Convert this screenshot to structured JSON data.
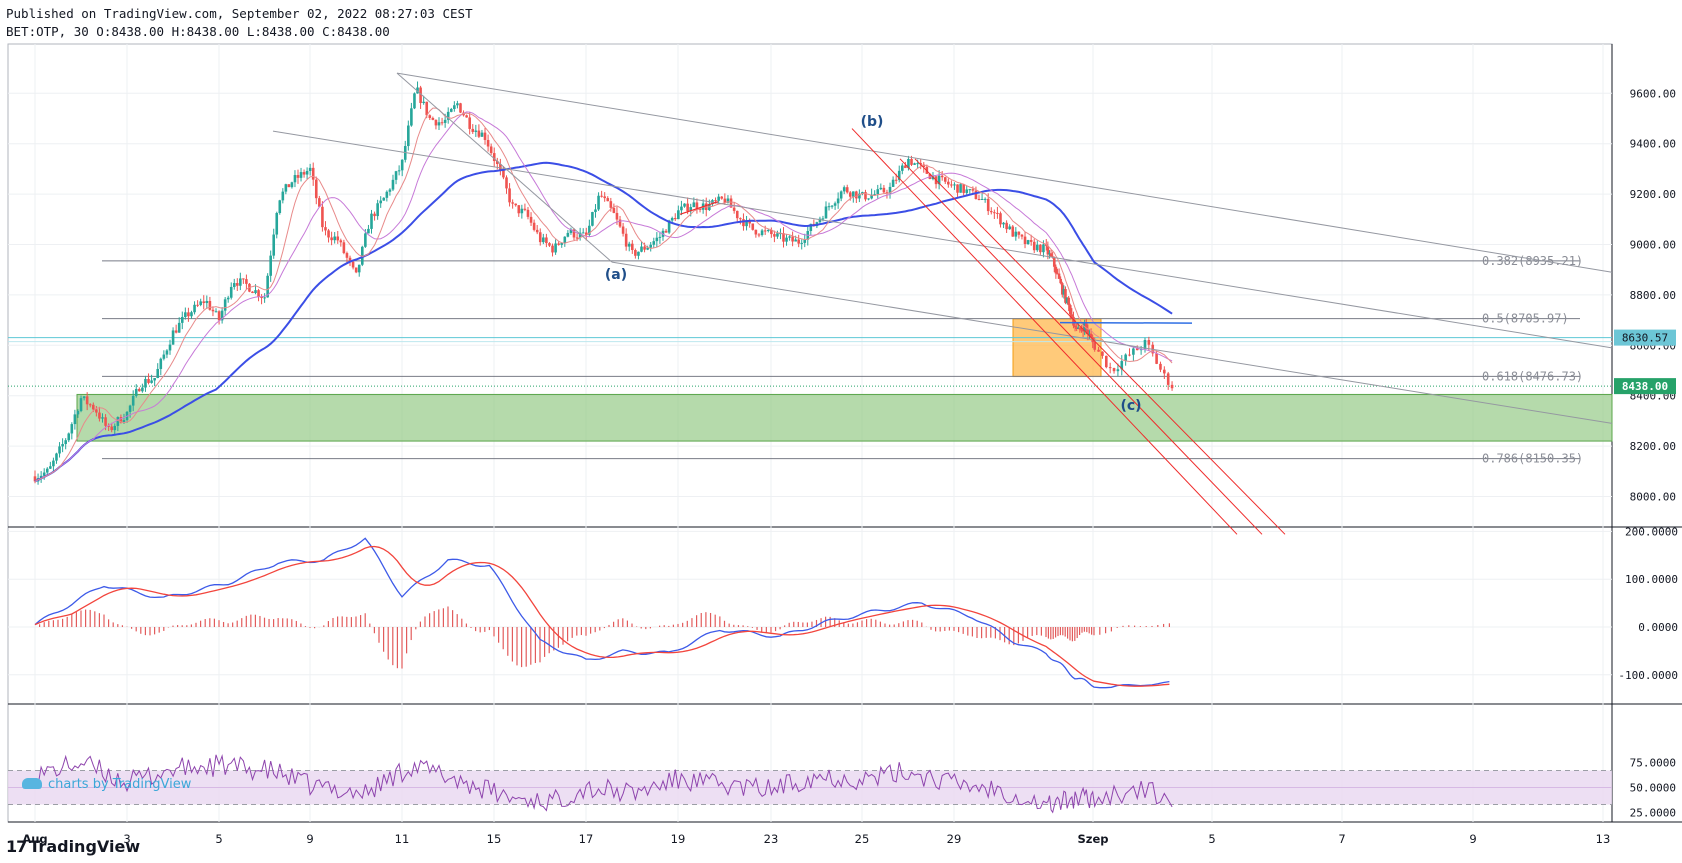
{
  "header": {
    "published": "Published on TradingView.com, September 02, 2022 08:27:03 CEST",
    "ohlc": "BET:OTP, 30 O:8438.00 H:8438.00 L:8438.00 C:8438.00"
  },
  "branding": {
    "footer": "TradingView",
    "watermark": "charts by TradingView"
  },
  "colors": {
    "up": "#26a69a",
    "down": "#ef5350",
    "ma_blue": "#3b4ee6",
    "ma_pink": "#e88a8a",
    "ma_violet": "#c77ad8",
    "fib": "#787b86",
    "channel": "#ef2b2b",
    "zone_green": "#8ec67e",
    "zone_orange": "#ffb84d",
    "last_price": "#26a269",
    "hline": "#5ec8d6"
  },
  "chart_data": [
    {
      "type": "candlestick",
      "symbol": "BET:OTP",
      "interval": "30",
      "x_tick_labels": [
        "Aug",
        "3",
        "5",
        "9",
        "11",
        "15",
        "17",
        "19",
        "23",
        "25",
        "29",
        "Szep",
        "5",
        "7",
        "9",
        "13"
      ],
      "y_ticks": [
        8000,
        8200,
        8400,
        8600,
        8800,
        9000,
        9200,
        9400,
        9600
      ],
      "y_tick_labels": [
        "8000.00",
        "8200.00",
        "8400.00",
        "8600.00",
        "8800.00",
        "9000.00",
        "9200.00",
        "9400.00",
        "9600.00"
      ],
      "ylim": [
        7950,
        9740
      ],
      "last_price": {
        "value": 8438,
        "label": "8438.00"
      },
      "price_line": {
        "value": 8630.57,
        "label": "8630.57"
      },
      "close_path_days": [
        [
          0,
          8080
        ],
        [
          0.3,
          8100
        ],
        [
          0.7,
          8240
        ],
        [
          1.0,
          8390
        ],
        [
          1.3,
          8350
        ],
        [
          1.6,
          8260
        ],
        [
          1.8,
          8300
        ],
        [
          2.0,
          8330
        ],
        [
          2.3,
          8450
        ],
        [
          2.6,
          8470
        ],
        [
          3.0,
          8650
        ],
        [
          3.3,
          8720
        ],
        [
          3.7,
          8780
        ],
        [
          4.0,
          8700
        ],
        [
          4.3,
          8860
        ],
        [
          4.6,
          8840
        ],
        [
          5.0,
          8790
        ],
        [
          5.3,
          9180
        ],
        [
          5.6,
          9250
        ],
        [
          6.0,
          9300
        ],
        [
          6.3,
          9050
        ],
        [
          6.6,
          9020
        ],
        [
          7.0,
          8870
        ],
        [
          7.3,
          9100
        ],
        [
          7.6,
          9180
        ],
        [
          8.0,
          9320
        ],
        [
          8.3,
          9620
        ],
        [
          8.6,
          9500
        ],
        [
          8.9,
          9480
        ],
        [
          9.2,
          9560
        ],
        [
          9.5,
          9470
        ],
        [
          9.8,
          9430
        ],
        [
          10.1,
          9300
        ],
        [
          10.4,
          9150
        ],
        [
          10.7,
          9120
        ],
        [
          11.0,
          9020
        ],
        [
          11.3,
          8980
        ],
        [
          11.6,
          9050
        ],
        [
          12.0,
          9030
        ],
        [
          12.3,
          9200
        ],
        [
          12.6,
          9120
        ],
        [
          13.0,
          8960
        ],
        [
          13.3,
          8990
        ],
        [
          13.6,
          9030
        ],
        [
          14.0,
          9130
        ],
        [
          14.3,
          9160
        ],
        [
          14.6,
          9150
        ],
        [
          15.0,
          9180
        ],
        [
          15.3,
          9110
        ],
        [
          15.6,
          9060
        ],
        [
          16.0,
          9040
        ],
        [
          16.3,
          9020
        ],
        [
          16.6,
          9010
        ],
        [
          17.0,
          9090
        ],
        [
          17.3,
          9160
        ],
        [
          17.6,
          9220
        ],
        [
          18.0,
          9190
        ],
        [
          18.3,
          9200
        ],
        [
          18.6,
          9220
        ],
        [
          19.0,
          9340
        ],
        [
          19.3,
          9300
        ],
        [
          19.6,
          9260
        ],
        [
          20.0,
          9230
        ],
        [
          20.3,
          9210
        ],
        [
          20.6,
          9180
        ],
        [
          21.0,
          9100
        ],
        [
          21.3,
          9040
        ],
        [
          21.6,
          9000
        ],
        [
          22.0,
          8980
        ],
        [
          22.3,
          8930
        ],
        [
          22.6,
          8840
        ],
        [
          23.0,
          8740
        ],
        [
          23.3,
          8650
        ],
        [
          23.6,
          8680
        ],
        [
          24.0,
          8600
        ],
        [
          24.3,
          8500
        ],
        [
          24.6,
          8560
        ],
        [
          24.9,
          8610
        ],
        [
          25.2,
          8480
        ],
        [
          25.35,
          8438
        ]
      ]
    },
    {
      "type": "line",
      "name": "MACD",
      "y_ticks": [
        200,
        100,
        0,
        -100
      ],
      "y_tick_labels": [
        "200.0000",
        "100.0000",
        "0.0000",
        "-100.0000"
      ],
      "ylim": [
        -160,
        210
      ]
    },
    {
      "type": "line",
      "name": "RSI",
      "y_ticks": [
        75,
        50,
        25
      ],
      "y_tick_labels": [
        "75.0000",
        "50.0000",
        "25.0000"
      ],
      "band": [
        33,
        67
      ],
      "ylim": [
        15,
        90
      ]
    }
  ],
  "fib_levels": [
    {
      "value": 8935.21,
      "label": "0.382(8935.21)"
    },
    {
      "value": 8705.97,
      "label": "0.5(8705.97)"
    },
    {
      "value": 8476.73,
      "label": "0.618(8476.73)"
    },
    {
      "value": 8150.35,
      "label": "0.786(8150.35)"
    }
  ],
  "annotations": [
    "(a)",
    "(b)",
    "(c)"
  ]
}
